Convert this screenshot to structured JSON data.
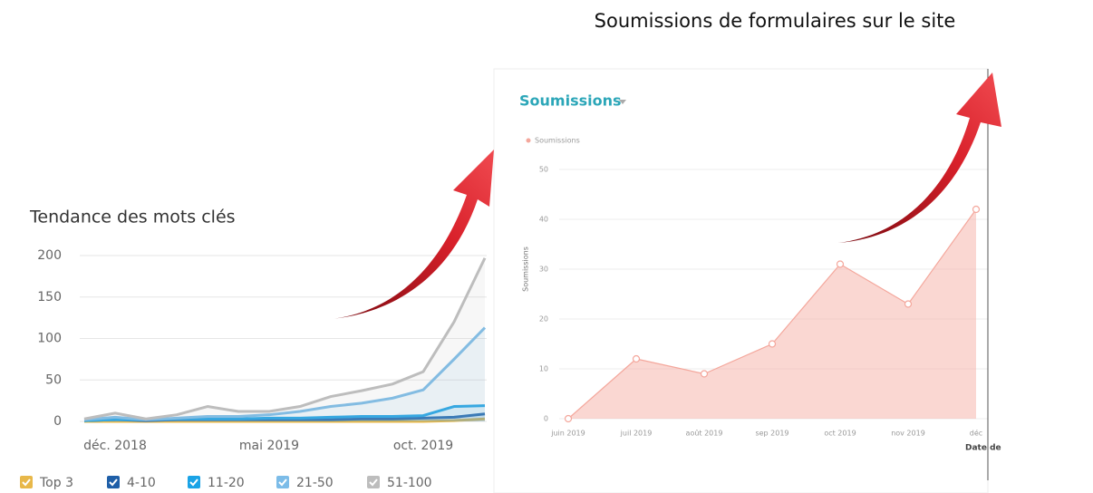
{
  "caption": "Soumissions de formulaires sur le site",
  "chart_data": [
    {
      "type": "area",
      "title": "Tendance des mots clés",
      "categories": [
        null,
        "déc. 2018",
        null,
        null,
        null,
        null,
        "mai 2019",
        null,
        null,
        null,
        null,
        "oct. 2019",
        null,
        null
      ],
      "ylim": [
        0,
        200
      ],
      "yticks": [
        0,
        50,
        100,
        150,
        200
      ],
      "grid": true,
      "series": [
        {
          "name": "Top 3",
          "color": "#e8b84a",
          "values": [
            0,
            0,
            0,
            0,
            0,
            0,
            0,
            0,
            0,
            0,
            0,
            0,
            1,
            3
          ]
        },
        {
          "name": "4-10",
          "color": "#1f5fa8",
          "values": [
            1,
            2,
            1,
            2,
            2,
            2,
            2,
            2,
            2,
            3,
            3,
            4,
            5,
            9
          ]
        },
        {
          "name": "11-20",
          "color": "#1aa3e6",
          "values": [
            1,
            2,
            2,
            3,
            3,
            3,
            4,
            4,
            5,
            6,
            6,
            7,
            18,
            19
          ]
        },
        {
          "name": "21-50",
          "color": "#7cbce8",
          "values": [
            2,
            5,
            2,
            4,
            6,
            6,
            8,
            12,
            18,
            22,
            28,
            38,
            75,
            113
          ]
        },
        {
          "name": "51-100",
          "color": "#bdbdbd",
          "values": [
            3,
            10,
            3,
            8,
            18,
            12,
            12,
            18,
            30,
            37,
            45,
            60,
            120,
            197
          ]
        }
      ]
    },
    {
      "type": "area",
      "title": "Soumissions",
      "y_label": "Soumissions",
      "x_label": "Date de",
      "categories": [
        "juin 2019",
        "juil 2019",
        "août 2019",
        "sep 2019",
        "oct 2019",
        "nov 2019",
        "déc"
      ],
      "ylim": [
        0,
        50
      ],
      "yticks": [
        0,
        10,
        20,
        30,
        40,
        50
      ],
      "grid": true,
      "markers": true,
      "series": [
        {
          "name": "Soumissions",
          "color": "#f4a79c",
          "values": [
            0,
            12,
            9,
            15,
            31,
            23,
            42
          ]
        }
      ]
    }
  ]
}
